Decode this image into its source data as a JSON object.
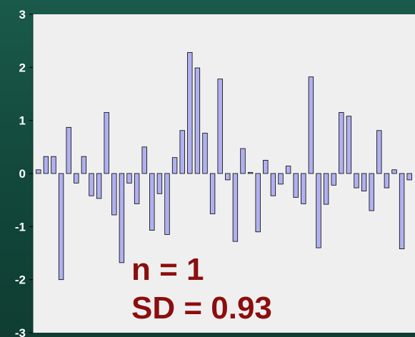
{
  "chart_data": {
    "type": "bar",
    "title": "",
    "xlabel": "",
    "ylabel": "",
    "ylim": [
      -3,
      3
    ],
    "yticks": [
      "3",
      "2",
      "1",
      "0",
      "-1",
      "-2",
      "-3"
    ],
    "grid": false,
    "legend": "none",
    "values": [
      0.07,
      0.32,
      0.32,
      -2.0,
      0.87,
      -0.18,
      0.32,
      -0.42,
      -0.47,
      1.15,
      -0.78,
      -1.68,
      -0.18,
      -0.57,
      0.5,
      -1.07,
      -0.38,
      -1.15,
      0.3,
      0.81,
      2.28,
      1.99,
      0.76,
      -0.76,
      1.78,
      -0.12,
      -1.28,
      0.47,
      0.02,
      -1.1,
      0.25,
      -0.42,
      -0.2,
      0.14,
      -0.45,
      -0.57,
      1.82,
      -1.4,
      -0.58,
      -0.22,
      1.15,
      1.08,
      -0.27,
      -0.33,
      -0.7,
      0.81,
      -0.27,
      0.07,
      -1.42,
      -0.12
    ],
    "annotations": [
      "n = 1",
      "SD = 0.93"
    ],
    "colors": {
      "bar_fill": "#b0b0f0",
      "bar_stroke": "#000000",
      "plot_background": "#efefef",
      "frame_background": "#14483c",
      "annotation_text": "#8b0e0e",
      "tick_text": "#ffffff"
    }
  }
}
